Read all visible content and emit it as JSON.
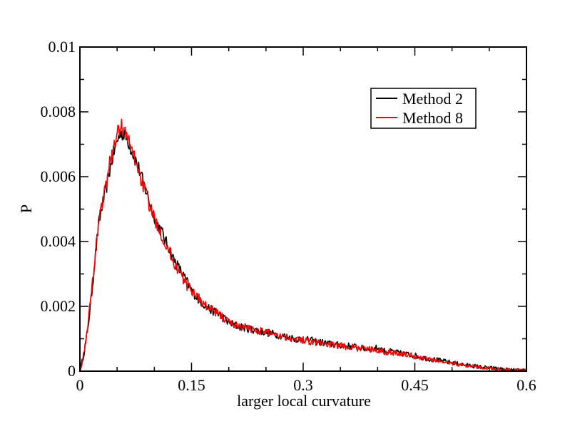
{
  "chart_data": {
    "type": "line",
    "title": "",
    "xlabel": "larger local curvature",
    "ylabel": "P",
    "xlim": [
      0,
      0.6
    ],
    "ylim": [
      0,
      0.01
    ],
    "x_ticks": [
      "0",
      "0.15",
      "0.3",
      "0.45",
      "0.6"
    ],
    "y_ticks": [
      "0",
      "0.002",
      "0.004",
      "0.006",
      "0.008",
      "0.01"
    ],
    "legend_position": "top-right",
    "grid": false,
    "x": [
      0.0,
      0.005,
      0.01,
      0.015,
      0.02,
      0.025,
      0.03,
      0.035,
      0.04,
      0.045,
      0.05,
      0.055,
      0.06,
      0.065,
      0.07,
      0.075,
      0.08,
      0.085,
      0.09,
      0.095,
      0.1,
      0.105,
      0.11,
      0.115,
      0.12,
      0.125,
      0.13,
      0.135,
      0.14,
      0.145,
      0.15,
      0.155,
      0.16,
      0.165,
      0.17,
      0.175,
      0.18,
      0.185,
      0.19,
      0.195,
      0.2,
      0.21,
      0.22,
      0.23,
      0.24,
      0.25,
      0.26,
      0.27,
      0.28,
      0.29,
      0.3,
      0.31,
      0.32,
      0.33,
      0.34,
      0.35,
      0.36,
      0.37,
      0.38,
      0.39,
      0.4,
      0.41,
      0.42,
      0.43,
      0.44,
      0.45,
      0.46,
      0.47,
      0.48,
      0.49,
      0.5,
      0.51,
      0.52,
      0.53,
      0.54,
      0.55,
      0.56,
      0.57,
      0.58,
      0.59,
      0.6
    ],
    "series": [
      {
        "name": "Method 2",
        "color": "#000000",
        "values": [
          0.0,
          0.0005,
          0.0012,
          0.0022,
          0.0034,
          0.0045,
          0.0051,
          0.0056,
          0.0062,
          0.0067,
          0.0071,
          0.0074,
          0.0073,
          0.0071,
          0.0068,
          0.0065,
          0.0062,
          0.0058,
          0.0055,
          0.0051,
          0.0048,
          0.0045,
          0.0043,
          0.004,
          0.0038,
          0.0035,
          0.0033,
          0.0031,
          0.0029,
          0.0027,
          0.0025,
          0.00235,
          0.0022,
          0.0021,
          0.002,
          0.0019,
          0.00185,
          0.0018,
          0.0017,
          0.0016,
          0.0015,
          0.0014,
          0.00135,
          0.0013,
          0.00125,
          0.0012,
          0.00115,
          0.0011,
          0.00105,
          0.001,
          0.00098,
          0.00095,
          0.0009,
          0.00087,
          0.00082,
          0.0008,
          0.00078,
          0.00075,
          0.0007,
          0.00068,
          0.00072,
          0.00062,
          0.0006,
          0.00055,
          0.00052,
          0.00048,
          0.00042,
          0.00038,
          0.00034,
          0.0003,
          0.00026,
          0.00022,
          0.00018,
          0.00016,
          0.00012,
          0.0001,
          8e-05,
          6e-05,
          4e-05,
          3e-05,
          2e-05
        ]
      },
      {
        "name": "Method 8",
        "color": "#ff0000",
        "values": [
          0.0,
          0.0005,
          0.0013,
          0.0023,
          0.0035,
          0.0046,
          0.0052,
          0.0057,
          0.0064,
          0.0069,
          0.0073,
          0.0076,
          0.0074,
          0.0071,
          0.0068,
          0.0065,
          0.0061,
          0.0057,
          0.0054,
          0.005,
          0.0047,
          0.0045,
          0.0042,
          0.0039,
          0.0037,
          0.0034,
          0.0032,
          0.003,
          0.0028,
          0.0026,
          0.0025,
          0.0024,
          0.00225,
          0.0021,
          0.002,
          0.0019,
          0.00185,
          0.00178,
          0.0017,
          0.00162,
          0.0015,
          0.00142,
          0.00135,
          0.0013,
          0.00125,
          0.0012,
          0.00116,
          0.0011,
          0.00104,
          0.001,
          0.00096,
          0.00092,
          0.00088,
          0.00085,
          0.0008,
          0.00078,
          0.00075,
          0.00072,
          0.0007,
          0.00067,
          0.00066,
          0.0006,
          0.00058,
          0.00053,
          0.0005,
          0.00046,
          0.0004,
          0.00036,
          0.00032,
          0.00028,
          0.00024,
          0.0002,
          0.00017,
          0.00015,
          0.00011,
          9e-05,
          7e-05,
          5e-05,
          4e-05,
          3e-05,
          2e-05
        ]
      }
    ]
  }
}
